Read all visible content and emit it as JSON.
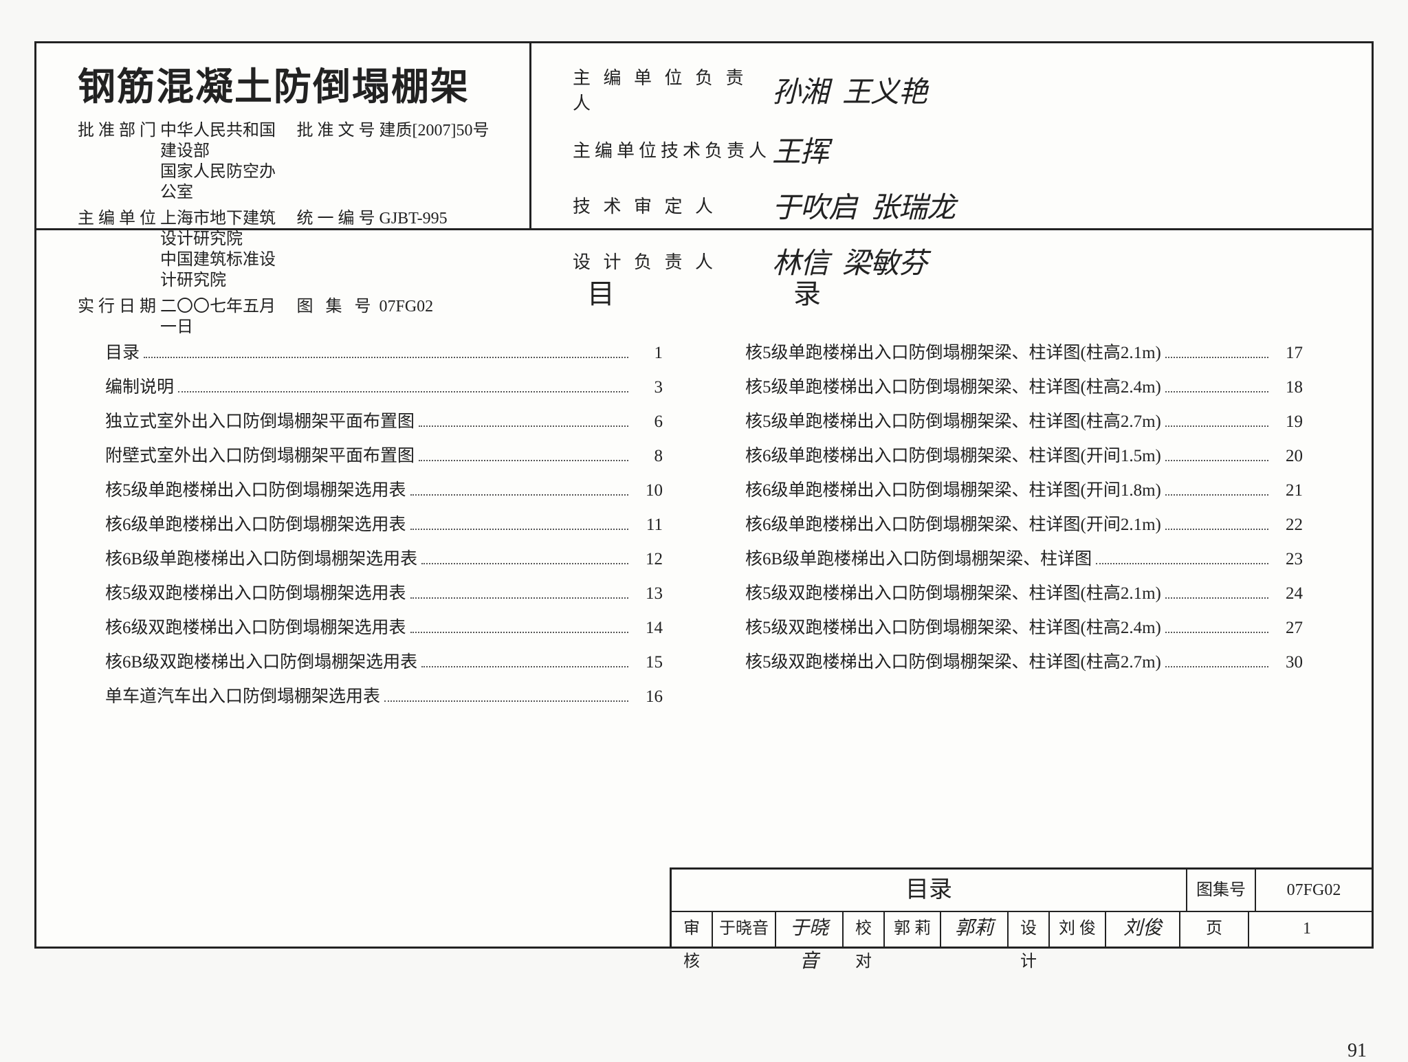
{
  "header": {
    "title": "钢筋混凝土防倒塌棚架",
    "rows": [
      {
        "l1": "批准部门",
        "v1": "中华人民共和国建设部\n国家人民防空办公室",
        "l2": "批准文号",
        "v2": "建质[2007]50号"
      },
      {
        "l1": "主编单位",
        "v1": "上海市地下建筑设计研究院\n中国建筑标准设计研究院",
        "l2": "统一编号",
        "v2": "GJBT-995"
      },
      {
        "l1": "实行日期",
        "v1": "二〇〇七年五月一日",
        "l2": "图 集 号",
        "v2": "07FG02"
      }
    ],
    "signers": [
      {
        "label": "主 编 单 位 负 责 人",
        "sig1": "孙湘",
        "sig2": "王义艳"
      },
      {
        "label": "主编单位技术负责人",
        "sig1": "王挥",
        "sig2": ""
      },
      {
        "label": "技 术 审 定 人",
        "sig1": "于吹启",
        "sig2": "张瑞龙"
      },
      {
        "label": "设 计 负 责 人",
        "sig1": "林信",
        "sig2": "梁敏芬"
      }
    ]
  },
  "toc_title": "目录",
  "toc_left": [
    {
      "t": "目录",
      "p": "1"
    },
    {
      "t": "编制说明",
      "p": "3"
    },
    {
      "t": "独立式室外出入口防倒塌棚架平面布置图",
      "p": "6"
    },
    {
      "t": "附壁式室外出入口防倒塌棚架平面布置图",
      "p": "8"
    },
    {
      "t": "核5级单跑楼梯出入口防倒塌棚架选用表",
      "p": "10"
    },
    {
      "t": "核6级单跑楼梯出入口防倒塌棚架选用表",
      "p": "11"
    },
    {
      "t": "核6B级单跑楼梯出入口防倒塌棚架选用表",
      "p": "12"
    },
    {
      "t": "核5级双跑楼梯出入口防倒塌棚架选用表",
      "p": "13"
    },
    {
      "t": "核6级双跑楼梯出入口防倒塌棚架选用表",
      "p": "14"
    },
    {
      "t": "核6B级双跑楼梯出入口防倒塌棚架选用表",
      "p": "15"
    },
    {
      "t": "单车道汽车出入口防倒塌棚架选用表",
      "p": "16"
    }
  ],
  "toc_right": [
    {
      "t": "核5级单跑楼梯出入口防倒塌棚架梁、柱详图(柱高2.1m)",
      "p": "17"
    },
    {
      "t": "核5级单跑楼梯出入口防倒塌棚架梁、柱详图(柱高2.4m)",
      "p": "18"
    },
    {
      "t": "核5级单跑楼梯出入口防倒塌棚架梁、柱详图(柱高2.7m)",
      "p": "19"
    },
    {
      "t": "核6级单跑楼梯出入口防倒塌棚架梁、柱详图(开间1.5m)",
      "p": "20"
    },
    {
      "t": "核6级单跑楼梯出入口防倒塌棚架梁、柱详图(开间1.8m)",
      "p": "21"
    },
    {
      "t": "核6级单跑楼梯出入口防倒塌棚架梁、柱详图(开间2.1m)",
      "p": "22"
    },
    {
      "t": "核6B级单跑楼梯出入口防倒塌棚架梁、柱详图",
      "p": "23"
    },
    {
      "t": "核5级双跑楼梯出入口防倒塌棚架梁、柱详图(柱高2.1m)",
      "p": "24"
    },
    {
      "t": "核5级双跑楼梯出入口防倒塌棚架梁、柱详图(柱高2.4m)",
      "p": "27"
    },
    {
      "t": "核5级双跑楼梯出入口防倒塌棚架梁、柱详图(柱高2.7m)",
      "p": "30"
    }
  ],
  "footer": {
    "title": "目录",
    "set_label": "图集号",
    "set_value": "07FG02",
    "review_label": "审核",
    "review_name": "于晓音",
    "review_sig": "于晓音",
    "check_label": "校对",
    "check_name": "郭 莉",
    "check_sig": "郭莉",
    "design_label": "设计",
    "design_name": "刘 俊",
    "design_sig": "刘俊",
    "page_label": "页",
    "page_value": "1"
  },
  "page_number": "91"
}
